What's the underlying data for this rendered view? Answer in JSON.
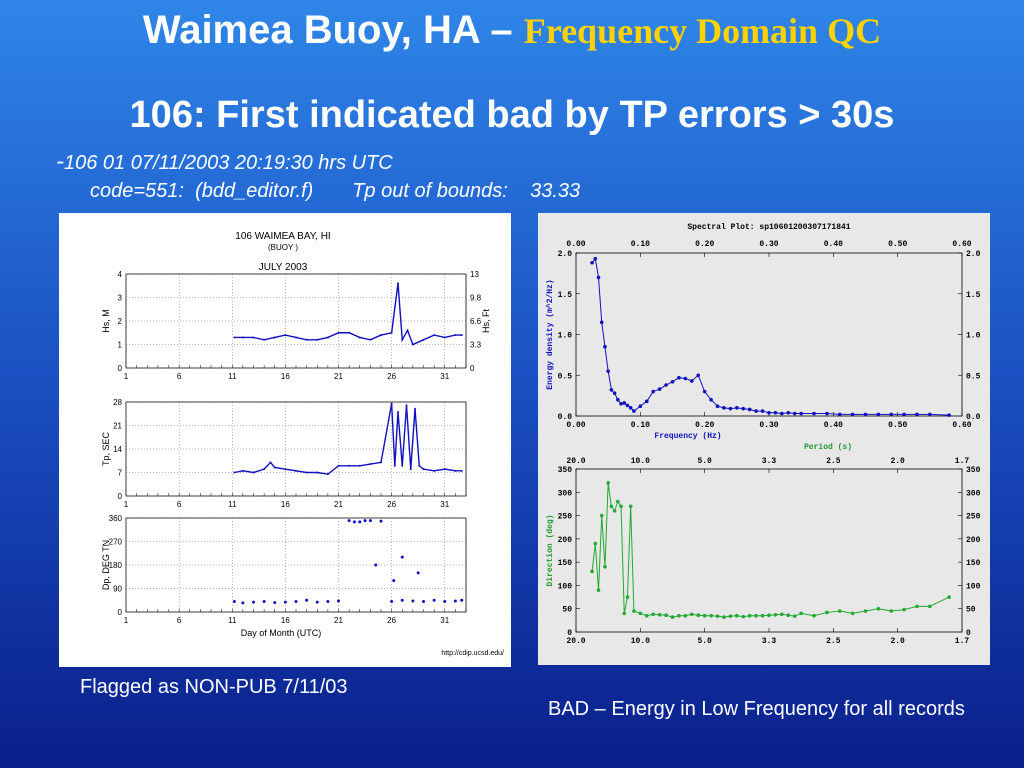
{
  "slide": {
    "title_main": "Waimea Buoy, HA – ",
    "title_accent": "Frequency Domain QC",
    "subtitle": "106: First indicated bad by TP errors > 30s",
    "info_line1_dash": "-",
    "info_line1": "106  01  07/11/2003 20:19:30 hrs UTC",
    "info_line2": "code=551:  (bdd_editor.f)       Tp out of bounds:    33.33",
    "caption_left": "Flagged as NON-PUB 7/11/03",
    "caption_right": "BAD – Energy in Low Frequency for all records",
    "colors": {
      "title_accent": "#ffd200",
      "panel_line": "#1010c0",
      "direction_line": "#22aa33"
    }
  },
  "left_panel": {
    "header": "106 WAIMEA BAY, HI",
    "subheader": "(BUOY )",
    "month": "JULY 2003",
    "source": "http://cdip.ucsd.edu/",
    "xlabel": "Day of Month (UTC)"
  },
  "chart_data": [
    {
      "type": "line",
      "title": "Hs",
      "ylabel": "Hs, M",
      "y2label": "Hs, Ft",
      "xlim": [
        1,
        33
      ],
      "ylim": [
        0,
        4
      ],
      "xticks": [
        1,
        6,
        11,
        16,
        21,
        26,
        31
      ],
      "yticks": [
        0,
        1,
        2,
        3,
        4
      ],
      "y2ticks": [
        "0",
        "3.3",
        "6.6",
        "9.8",
        "13"
      ],
      "x": [
        11.2,
        12,
        13,
        14,
        15,
        16,
        17,
        18,
        19,
        20,
        21,
        22,
        23,
        24,
        25,
        26,
        26.6,
        27,
        27.5,
        28,
        29,
        30,
        31,
        32,
        32.6
      ],
      "y": [
        1.3,
        1.3,
        1.3,
        1.2,
        1.3,
        1.4,
        1.3,
        1.2,
        1.2,
        1.3,
        1.5,
        1.5,
        1.3,
        1.2,
        1.4,
        1.5,
        3.6,
        1.2,
        1.6,
        1.0,
        1.2,
        1.4,
        1.3,
        1.4,
        1.4
      ]
    },
    {
      "type": "line",
      "title": "Tp",
      "ylabel": "Tp, SEC",
      "xlim": [
        1,
        33
      ],
      "ylim": [
        0,
        28
      ],
      "xticks": [
        1,
        6,
        11,
        16,
        21,
        26,
        31
      ],
      "yticks": [
        0,
        7,
        14,
        21,
        28
      ],
      "x": [
        11.2,
        12,
        13,
        14,
        14.6,
        15,
        16,
        17,
        18,
        19,
        20,
        21,
        22,
        23,
        24,
        25,
        26,
        26.3,
        26.6,
        27,
        27.4,
        27.8,
        28.2,
        28.6,
        29,
        30,
        31,
        32,
        32.6
      ],
      "y": [
        7,
        7.5,
        7,
        8,
        10,
        8.5,
        8,
        7.5,
        7,
        7,
        6.5,
        9,
        9,
        9,
        9.5,
        10,
        27.5,
        9,
        25,
        9,
        27,
        8,
        26,
        9,
        8,
        7.5,
        8,
        7.5,
        7.5
      ]
    },
    {
      "type": "scatter",
      "title": "Dp",
      "ylabel": "Dp, DEG TN",
      "xlim": [
        1,
        33
      ],
      "ylim": [
        0,
        360
      ],
      "xticks": [
        1,
        6,
        11,
        16,
        21,
        26,
        31
      ],
      "yticks": [
        0,
        90,
        180,
        270,
        360
      ],
      "x": [
        11.2,
        12,
        13,
        14,
        15,
        16,
        17,
        18,
        19,
        20,
        21,
        22,
        22.5,
        23,
        24,
        25,
        26,
        27,
        28,
        29,
        30,
        31,
        32,
        32.6,
        26.2,
        27,
        28.5,
        24.5,
        23.5
      ],
      "y": [
        40,
        35,
        38,
        40,
        36,
        38,
        40,
        45,
        38,
        40,
        42,
        350,
        345,
        345,
        350,
        348,
        40,
        45,
        42,
        40,
        45,
        40,
        42,
        45,
        120,
        210,
        150,
        180,
        350
      ]
    },
    {
      "type": "line",
      "title": "Spectral Plot: sp10601200307171841",
      "xlabel": "Frequency (Hz)",
      "ylabel": "Energy density (m^2/Hz)",
      "x2label": "Period (s)",
      "xlim": [
        0,
        0.6
      ],
      "ylim": [
        0,
        2.0
      ],
      "xticks": [
        "0.00",
        "0.10",
        "0.20",
        "0.30",
        "0.40",
        "0.50",
        "0.60"
      ],
      "yticks": [
        "0.0",
        "0.5",
        "1.0",
        "1.5",
        "2.0"
      ],
      "x2ticks": [
        "20.0",
        "10.0",
        "5.0",
        "3.3",
        "2.5",
        "2.0",
        "1.7"
      ],
      "x": [
        0.025,
        0.03,
        0.035,
        0.04,
        0.045,
        0.05,
        0.055,
        0.06,
        0.065,
        0.07,
        0.075,
        0.08,
        0.085,
        0.09,
        0.1,
        0.11,
        0.12,
        0.13,
        0.14,
        0.15,
        0.16,
        0.17,
        0.18,
        0.19,
        0.2,
        0.21,
        0.22,
        0.23,
        0.24,
        0.25,
        0.26,
        0.27,
        0.28,
        0.29,
        0.3,
        0.31,
        0.32,
        0.33,
        0.34,
        0.35,
        0.37,
        0.39,
        0.41,
        0.43,
        0.45,
        0.47,
        0.49,
        0.51,
        0.53,
        0.55,
        0.58
      ],
      "y": [
        1.88,
        1.93,
        1.7,
        1.15,
        0.85,
        0.55,
        0.32,
        0.28,
        0.2,
        0.15,
        0.16,
        0.13,
        0.1,
        0.06,
        0.12,
        0.18,
        0.3,
        0.33,
        0.38,
        0.42,
        0.47,
        0.46,
        0.43,
        0.5,
        0.3,
        0.2,
        0.12,
        0.1,
        0.09,
        0.1,
        0.09,
        0.08,
        0.06,
        0.06,
        0.04,
        0.04,
        0.03,
        0.04,
        0.03,
        0.03,
        0.03,
        0.03,
        0.02,
        0.02,
        0.02,
        0.02,
        0.02,
        0.02,
        0.02,
        0.02,
        0.01
      ]
    },
    {
      "type": "line",
      "title": "Direction",
      "xlabel": "",
      "ylabel": "Direction (deg)",
      "xlim": [
        0,
        0.6
      ],
      "ylim": [
        0,
        350
      ],
      "xticks": [
        "20.0",
        "10.0",
        "5.0",
        "3.3",
        "2.5",
        "2.0",
        "1.7"
      ],
      "yticks": [
        "0",
        "50",
        "100",
        "150",
        "200",
        "250",
        "300",
        "350"
      ],
      "x": [
        0.025,
        0.03,
        0.035,
        0.04,
        0.045,
        0.05,
        0.055,
        0.06,
        0.065,
        0.07,
        0.075,
        0.08,
        0.085,
        0.09,
        0.1,
        0.11,
        0.12,
        0.13,
        0.14,
        0.15,
        0.16,
        0.17,
        0.18,
        0.19,
        0.2,
        0.21,
        0.22,
        0.23,
        0.24,
        0.25,
        0.26,
        0.27,
        0.28,
        0.29,
        0.3,
        0.31,
        0.32,
        0.33,
        0.34,
        0.35,
        0.37,
        0.39,
        0.41,
        0.43,
        0.45,
        0.47,
        0.49,
        0.51,
        0.53,
        0.55,
        0.58
      ],
      "y": [
        130,
        190,
        90,
        250,
        140,
        320,
        270,
        260,
        280,
        270,
        40,
        75,
        270,
        45,
        40,
        35,
        38,
        37,
        36,
        32,
        35,
        35,
        38,
        36,
        35,
        35,
        34,
        32,
        34,
        35,
        33,
        35,
        35,
        35,
        36,
        37,
        38,
        36,
        34,
        40,
        35,
        42,
        45,
        40,
        45,
        50,
        45,
        48,
        55,
        55,
        75
      ]
    }
  ]
}
